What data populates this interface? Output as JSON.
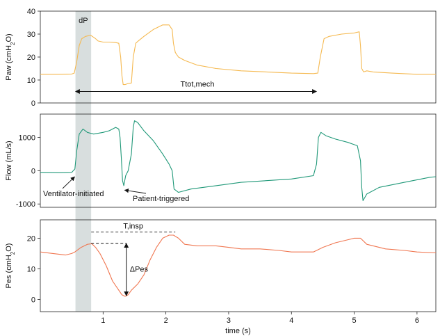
{
  "chart_data": [
    {
      "type": "line",
      "title": "",
      "ylabel": "Paw (cmH2O)",
      "ylabel_parts": {
        "main": "Paw (cmH",
        "sub": "2",
        "end": "O)"
      },
      "xlim": [
        0,
        6.3
      ],
      "ylim": [
        0,
        40
      ],
      "yticks": [
        0,
        10,
        20,
        30,
        40
      ],
      "color": "#f5b950",
      "series": [
        {
          "name": "Paw",
          "x": [
            0,
            0.3,
            0.5,
            0.54,
            0.58,
            0.62,
            0.66,
            0.72,
            0.8,
            0.88,
            0.92,
            1.0,
            1.1,
            1.2,
            1.25,
            1.28,
            1.3,
            1.32,
            1.35,
            1.4,
            1.45,
            1.48,
            1.52,
            1.56,
            1.65,
            1.8,
            1.95,
            2.05,
            2.1,
            2.12,
            2.15,
            2.2,
            2.3,
            2.5,
            2.8,
            3.2,
            3.6,
            4.0,
            4.35,
            4.42,
            4.46,
            4.52,
            4.6,
            4.8,
            5.0,
            5.08,
            5.1,
            5.12,
            5.15,
            5.2,
            5.3,
            5.6,
            6.0,
            6.3
          ],
          "y": [
            12.5,
            12.5,
            12.6,
            13,
            18,
            25,
            28,
            29,
            29.5,
            28,
            27,
            26.5,
            26.5,
            26.3,
            26,
            20,
            12,
            8,
            8,
            8.5,
            8.7,
            20,
            26,
            27,
            29,
            32,
            34,
            34,
            32,
            26,
            22,
            20,
            18.5,
            16.5,
            15,
            14,
            13.5,
            13,
            12.8,
            13,
            20,
            28,
            29,
            30,
            30.5,
            31,
            25,
            15,
            13.5,
            14,
            13.5,
            13,
            12.5,
            12.5
          ]
        }
      ],
      "annotations": {
        "dP_label": "dP",
        "dP_band": [
          0.56,
          0.81
        ],
        "ttot_label": "Ttot,mech",
        "ttot_range": [
          0.56,
          4.4
        ],
        "ttot_y": 5
      }
    },
    {
      "type": "line",
      "title": "",
      "ylabel": "Flow (mL/s)",
      "xlim": [
        0,
        6.3
      ],
      "ylim": [
        -1100,
        1700
      ],
      "yticks": [
        -1000,
        0,
        1000
      ],
      "color": "#1f9878",
      "series": [
        {
          "name": "Flow",
          "x": [
            0,
            0.3,
            0.5,
            0.55,
            0.58,
            0.62,
            0.68,
            0.75,
            0.85,
            1.0,
            1.1,
            1.2,
            1.25,
            1.27,
            1.29,
            1.31,
            1.33,
            1.36,
            1.4,
            1.45,
            1.48,
            1.5,
            1.55,
            1.65,
            1.8,
            1.95,
            2.05,
            2.1,
            2.13,
            2.2,
            2.4,
            2.8,
            3.2,
            3.6,
            4.0,
            4.35,
            4.4,
            4.43,
            4.47,
            4.55,
            4.7,
            4.9,
            5.05,
            5.1,
            5.12,
            5.14,
            5.2,
            5.4,
            5.8,
            6.2,
            6.3
          ],
          "y": [
            -50,
            -60,
            -50,
            50,
            600,
            1100,
            1250,
            1150,
            1100,
            1150,
            1200,
            1300,
            1250,
            1000,
            400,
            -300,
            -450,
            -150,
            0,
            500,
            1300,
            1500,
            1450,
            1200,
            900,
            500,
            200,
            0,
            -550,
            -650,
            -550,
            -450,
            -350,
            -300,
            -250,
            -150,
            200,
            1000,
            1150,
            1050,
            950,
            850,
            750,
            300,
            -500,
            -900,
            -700,
            -500,
            -350,
            -200,
            -180
          ]
        }
      ],
      "annotations": {
        "vent_label": "Ventilator-initiated",
        "vent_point": [
          0.57,
          -120
        ],
        "patient_label": "Patient-triggered",
        "patient_point": [
          1.31,
          -500
        ]
      }
    },
    {
      "type": "line",
      "title": "",
      "xlabel": "time (s)",
      "ylabel": "Pes (cmH2O)",
      "ylabel_parts": {
        "main": "Pes (cmH",
        "sub": "2",
        "end": "O)"
      },
      "xlim": [
        0,
        6.3
      ],
      "ylim": [
        -4,
        26
      ],
      "xticks": [
        1,
        2,
        3,
        4,
        5,
        6
      ],
      "yticks": [
        0,
        10,
        20
      ],
      "color": "#f07650",
      "series": [
        {
          "name": "Pes",
          "x": [
            0,
            0.2,
            0.4,
            0.5,
            0.55,
            0.65,
            0.75,
            0.82,
            0.88,
            0.95,
            1.05,
            1.15,
            1.25,
            1.3,
            1.35,
            1.4,
            1.45,
            1.55,
            1.65,
            1.75,
            1.85,
            1.95,
            2.05,
            2.12,
            2.2,
            2.3,
            2.5,
            2.8,
            3.0,
            3.2,
            3.5,
            3.8,
            4.0,
            4.2,
            4.35,
            4.5,
            4.7,
            4.9,
            5.0,
            5.1,
            5.2,
            5.5,
            5.8,
            6.0,
            6.3
          ],
          "y": [
            15.5,
            15,
            14.5,
            15,
            15.5,
            17,
            18,
            18.2,
            17,
            15,
            11,
            6,
            3,
            1.5,
            1,
            1.5,
            3,
            5,
            8,
            13,
            17,
            20,
            21,
            21,
            20,
            18,
            17.5,
            17.5,
            17,
            16.5,
            16.5,
            16,
            15.5,
            15.5,
            15.5,
            17,
            18.5,
            19.5,
            20,
            20,
            18,
            16.5,
            16,
            15.5,
            15.2
          ]
        }
      ],
      "annotations": {
        "tinsp_label": "T,insp",
        "tinsp_range": [
          0.81,
          2.15
        ],
        "tinsp_y": 22,
        "dpes_label": "ΔPes",
        "dpes_x": 1.37,
        "dpes_top": 18.3,
        "dpes_bottom": 1.2,
        "dpes_dash_from": 0.81
      }
    }
  ]
}
